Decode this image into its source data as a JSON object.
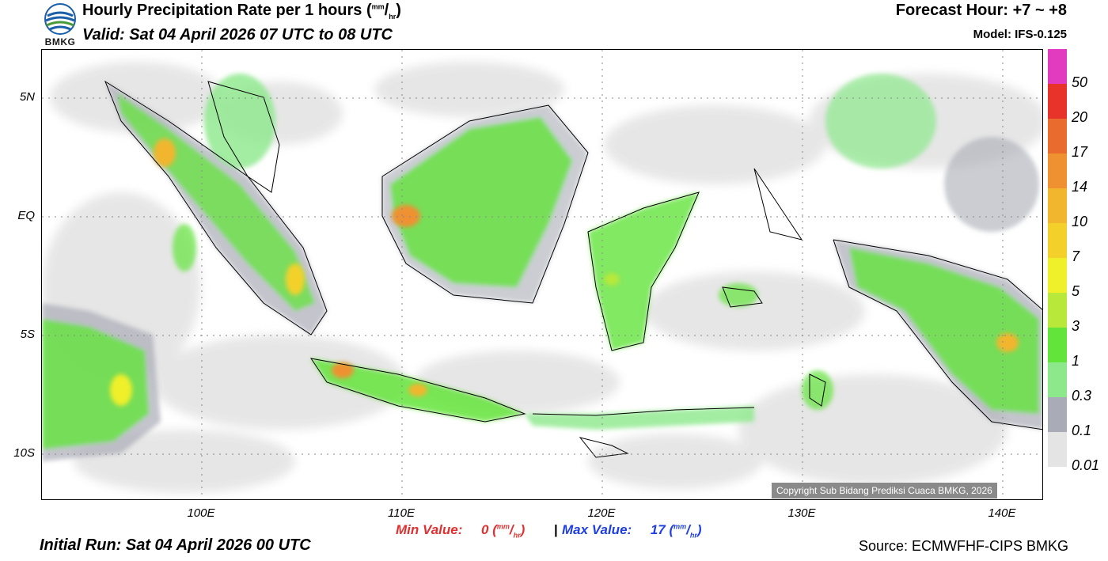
{
  "header": {
    "logo_text": "BMKG",
    "title": "Hourly Precipitation Rate per 1 hours",
    "title_unit_num": "mm",
    "title_unit_den": "hr",
    "valid": "Valid: Sat 04 April 2026 07 UTC to 08 UTC",
    "forecast_hour": "Forecast Hour: +7 ~ +8",
    "model": "Model: IFS-0.125"
  },
  "map": {
    "lat_labels": [
      "5N",
      "EQ",
      "5S",
      "10S"
    ],
    "lon_labels": [
      "100E",
      "110E",
      "120E",
      "130E",
      "140E"
    ],
    "copyright": "Copyright Sub Bidang Prediksi Cuaca BMKG, 2026"
  },
  "legend": {
    "labels": [
      "50",
      "20",
      "17",
      "14",
      "10",
      "7",
      "5",
      "3",
      "1",
      "0.3",
      "0.1",
      "0.01"
    ],
    "colors": [
      "#e23bbf",
      "#e8332a",
      "#ea6b2e",
      "#ef9130",
      "#f2b52e",
      "#f3d12a",
      "#efef2a",
      "#b7e83a",
      "#63e43b",
      "#8ce88b",
      "#a9abb6",
      "#e4e4e4"
    ]
  },
  "footer": {
    "min_label": "Min Value:",
    "min_value": "0",
    "max_label": "Max Value:",
    "max_value": "17",
    "unit_num": "mm",
    "unit_den": "hr",
    "separator": "|",
    "initial_run": "Initial Run: Sat 04 April 2026 00 UTC",
    "source": "Source: ECMWFHF-CIPS BMKG"
  }
}
